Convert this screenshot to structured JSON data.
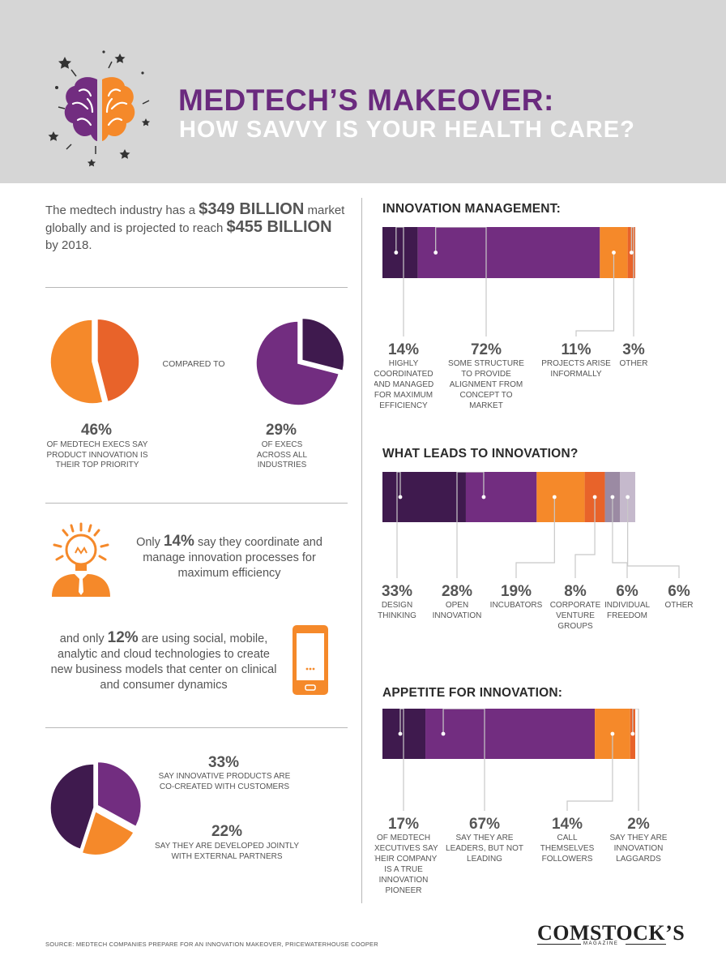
{
  "header": {
    "title_line1": "MEDTECH’S MAKEOVER:",
    "title_line2": "HOW SAVVY IS YOUR HEALTH CARE?"
  },
  "intro": {
    "part1": "The medtech industry has a ",
    "figure1": "$349 BILLION",
    "part2": " market globally and is projected to reach ",
    "figure2": "$455 BILLION",
    "part3": " by 2018."
  },
  "comparison": {
    "compared_to": "COMPARED TO",
    "medtech": {
      "value_label": "46%",
      "caption": "OF MEDTECH EXECS SAY PRODUCT INNOVATION IS THEIR TOP PRIORITY"
    },
    "all": {
      "value_label": "29%",
      "caption": "OF EXECS ACROSS ALL INDUSTRIES"
    }
  },
  "coordinate": {
    "pre": "Only ",
    "figure": "14%",
    "post": " say they coordinate and manage innovation processes for maximum efficiency"
  },
  "technology": {
    "pre": "and only ",
    "figure": "12%",
    "post": " are using social, mobile, analytic and cloud technologies to create new business models that center on clinical and consumer dynamics"
  },
  "cocreation": {
    "a": {
      "value_label": "33%",
      "caption": "SAY INNOVATIVE PRODUCTS ARE CO-CREATED WITH CUSTOMERS"
    },
    "b": {
      "value_label": "22%",
      "caption": "SAY THEY ARE DEVELOPED JOINTLY WITH EXTERNAL PARTNERS"
    }
  },
  "footer": {
    "source": "SOURCE: MEDTECH COMPANIES PREPARE FOR AN INNOVATION MAKEOVER, PRICEWATERHOUSE COOPER",
    "logo": "COMSTOCK’S",
    "logo_sub": "MAGAZINE"
  },
  "colors": {
    "dark_purple": "#3f1a4e",
    "purple": "#722d80",
    "orange": "#f5892a",
    "dark_orange": "#e8632a",
    "lavender": "#9b8aa3",
    "light_lavender": "#c5b9cc"
  },
  "chart_data": [
    {
      "type": "pie",
      "values": [
        46,
        54
      ],
      "caption": "46% OF MEDTECH EXECS SAY PRODUCT INNOVATION IS THEIR TOP PRIORITY",
      "colors": [
        "#e8632a",
        "#f5892a"
      ]
    },
    {
      "type": "pie",
      "values": [
        29,
        71
      ],
      "caption": "29% OF EXECS ACROSS ALL INDUSTRIES",
      "colors": [
        "#3f1a4e",
        "#722d80"
      ]
    },
    {
      "type": "pie",
      "values": [
        33,
        22,
        45
      ],
      "labels": [
        "SAY INNOVATIVE PRODUCTS ARE CO-CREATED WITH CUSTOMERS",
        "SAY THEY ARE DEVELOPED JOINTLY WITH EXTERNAL PARTNERS",
        ""
      ],
      "colors": [
        "#722d80",
        "#f5892a",
        "#3f1a4e"
      ]
    },
    {
      "type": "bar",
      "orientation": "stacked-horizontal",
      "title": "INNOVATION MANAGEMENT:",
      "categories": [
        "HIGHLY COORDINATED AND MANAGED FOR MAXIMUM EFFICIENCY",
        "SOME STRUCTURE TO PROVIDE ALIGNMENT FROM CONCEPT TO MARKET",
        "PROJECTS ARISE INFORMALLY",
        "OTHER"
      ],
      "values": [
        14,
        72,
        11,
        3
      ],
      "colors": [
        "#3f1a4e",
        "#722d80",
        "#f5892a",
        "#e8632a"
      ]
    },
    {
      "type": "bar",
      "orientation": "stacked-horizontal",
      "title": "WHAT LEADS TO INNOVATION?",
      "categories": [
        "DESIGN THINKING",
        "OPEN INNOVATION",
        "INCUBATORS",
        "CORPORATE VENTURE GROUPS",
        "INDIVIDUAL FREEDOM",
        "OTHER"
      ],
      "values": [
        33,
        28,
        19,
        8,
        6,
        6
      ],
      "colors": [
        "#3f1a4e",
        "#722d80",
        "#f5892a",
        "#e8632a",
        "#9b8aa3",
        "#c5b9cc"
      ]
    },
    {
      "type": "bar",
      "orientation": "stacked-horizontal",
      "title": "APPETITE FOR INNOVATION:",
      "categories": [
        "OF MEDTECH EXECUTIVES SAY THEIR COMPANY IS A TRUE INNOVATION PIONEER",
        "SAY THEY ARE LEADERS, BUT NOT LEADING",
        "CALL THEMSELVES FOLLOWERS",
        "SAY THEY ARE INNOVATION LAGGARDS"
      ],
      "values": [
        17,
        67,
        14,
        2
      ],
      "colors": [
        "#3f1a4e",
        "#722d80",
        "#f5892a",
        "#e8632a"
      ]
    }
  ]
}
